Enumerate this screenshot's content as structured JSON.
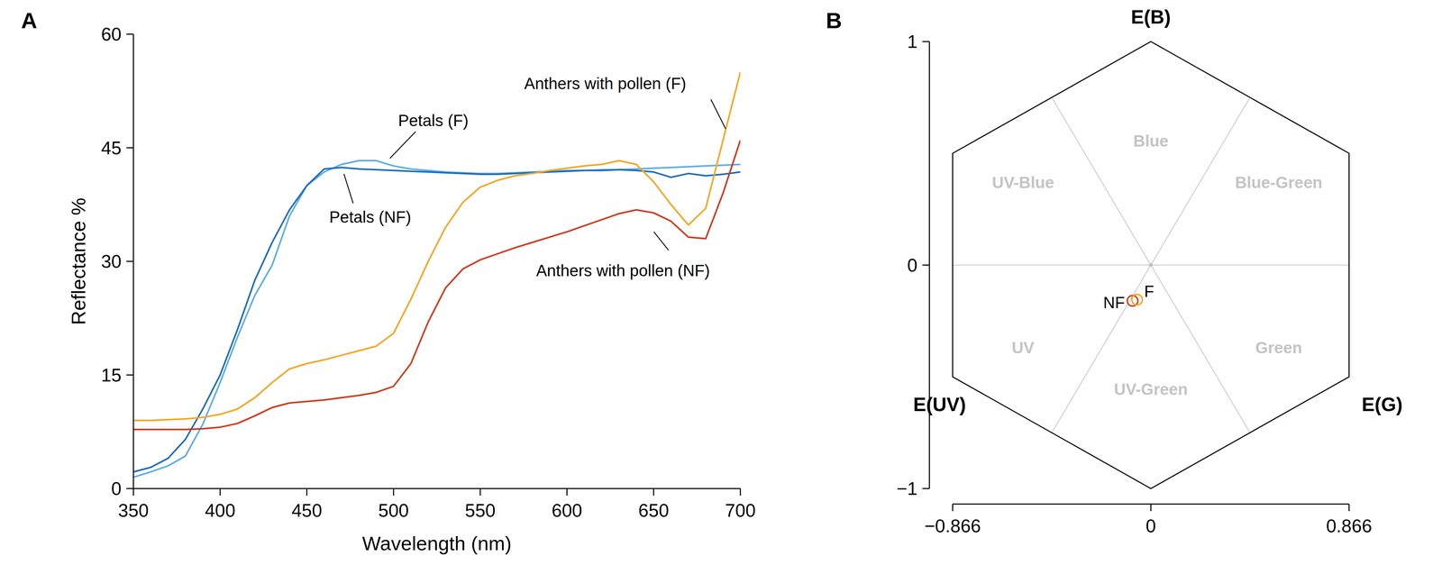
{
  "chart_data": [
    {
      "type": "line",
      "title": "A",
      "x_label": "Wavelength (nm)",
      "y_label": "Reflectance %",
      "x": [
        350,
        360,
        370,
        380,
        390,
        400,
        410,
        420,
        430,
        440,
        450,
        460,
        470,
        480,
        490,
        500,
        510,
        520,
        530,
        540,
        550,
        560,
        570,
        580,
        590,
        600,
        610,
        620,
        630,
        640,
        650,
        660,
        670,
        680,
        690,
        700
      ],
      "series": [
        {
          "name": "Petals (F)",
          "color": "#5aaee8",
          "values": [
            1.5,
            2.2,
            3,
            4.3,
            8.5,
            14,
            20,
            25.5,
            29.5,
            36,
            40,
            41.8,
            42.8,
            43.3,
            43.3,
            42.6,
            42.2,
            42,
            41.8,
            41.7,
            41.6,
            41.6,
            41.7,
            41.8,
            41.9,
            42,
            42,
            42.1,
            42.1,
            42.2,
            42.3,
            42.4,
            42.5,
            42.6,
            42.7,
            42.8
          ]
        },
        {
          "name": "Petals (NF)",
          "color": "#1c6cbf",
          "values": [
            2.2,
            2.8,
            4,
            6.5,
            10.5,
            15,
            21,
            27.5,
            32.5,
            36.8,
            40,
            42.2,
            42.4,
            42.2,
            42.1,
            42,
            41.9,
            41.8,
            41.7,
            41.6,
            41.5,
            41.5,
            41.6,
            41.7,
            41.8,
            41.9,
            42,
            42,
            42.1,
            42,
            41.8,
            41.1,
            41.6,
            41.3,
            41.5,
            41.8
          ]
        },
        {
          "name": "Anthers with pollen (F)",
          "color": "#f5a623",
          "values": [
            9,
            9,
            9.1,
            9.2,
            9.4,
            9.8,
            10.5,
            12,
            14,
            15.8,
            16.5,
            17,
            17.6,
            18.2,
            18.8,
            20.5,
            25,
            30,
            34.5,
            37.8,
            39.8,
            40.7,
            41.3,
            41.6,
            42,
            42.3,
            42.6,
            42.8,
            43.3,
            42.8,
            40.5,
            37.5,
            34.8,
            37,
            46,
            55
          ]
        },
        {
          "name": "Anthers with pollen (NF)",
          "color": "#d2391c",
          "values": [
            7.8,
            7.8,
            7.8,
            7.8,
            7.9,
            8.1,
            8.6,
            9.6,
            10.7,
            11.3,
            11.5,
            11.7,
            12,
            12.3,
            12.7,
            13.5,
            16.5,
            22,
            26.5,
            29,
            30.2,
            31,
            31.8,
            32.5,
            33.2,
            33.9,
            34.7,
            35.5,
            36.3,
            36.8,
            36.4,
            35.3,
            33.2,
            33,
            39,
            46
          ]
        }
      ],
      "xlim": [
        350,
        700
      ],
      "ylim": [
        0,
        60
      ],
      "xticks": [
        350,
        400,
        450,
        500,
        550,
        600,
        650,
        700
      ],
      "yticks": [
        0,
        15,
        30,
        45,
        60
      ],
      "grid": false
    },
    {
      "type": "scatter",
      "title": "B",
      "vertex_labels": [
        "E(B)",
        "E(G)",
        "E(UV)"
      ],
      "sector_labels": [
        "Blue",
        "Blue-Green",
        "Green",
        "UV-Green",
        "UV",
        "UV-Blue"
      ],
      "series": [
        {
          "name": "NF",
          "color": "#d2391c",
          "marker": "open-circle",
          "x": [
            -0.08
          ],
          "values": [
            -0.16
          ]
        },
        {
          "name": "F",
          "color": "#f5a623",
          "marker": "open-circle",
          "x": [
            -0.06
          ],
          "values": [
            -0.155
          ]
        }
      ],
      "xlim": [
        -0.866,
        0.866
      ],
      "ylim": [
        -1,
        1
      ],
      "xticks": [
        {
          "value": -0.866,
          "label": "−0.866"
        },
        0,
        0.866
      ],
      "yticks": [
        {
          "value": -1,
          "label": "−1"
        },
        0,
        1
      ],
      "grid": false
    }
  ]
}
